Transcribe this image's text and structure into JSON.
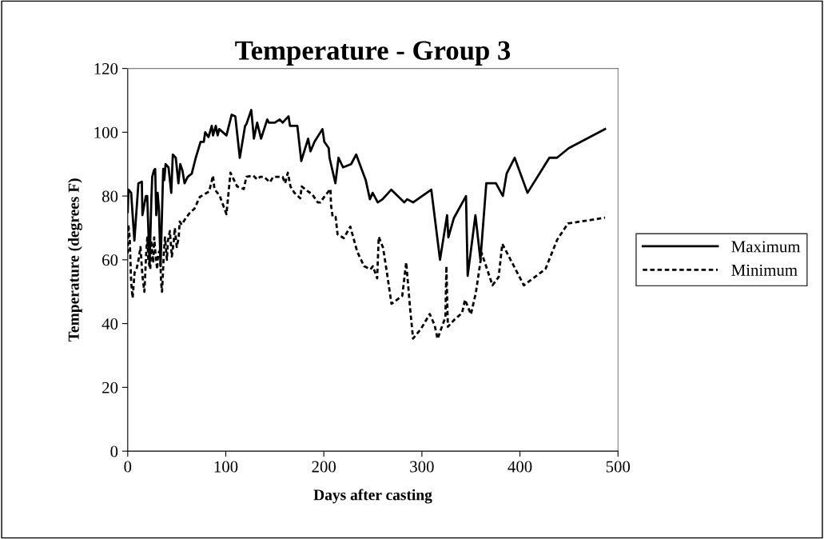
{
  "chart_data": {
    "type": "line",
    "title": "Temperature - Group 3",
    "xlabel": "Days after casting",
    "ylabel": "Temperature (degrees F)",
    "xlim": [
      0,
      500
    ],
    "xticks": [
      0,
      100,
      200,
      300,
      400,
      500
    ],
    "ylim": [
      0,
      120
    ],
    "yticks": [
      0,
      20,
      40,
      60,
      80,
      100,
      120
    ],
    "grid": false,
    "legend": "right",
    "marker": "none",
    "series": [
      {
        "name": "Maximum",
        "color": "#000000",
        "line_style": "solid",
        "x": [
          0,
          0.8,
          3.5,
          6.8,
          10.9,
          14.4,
          15,
          18.5,
          19.9,
          22.3,
          24,
          25,
          26.7,
          28,
          29.1,
          30.5,
          31.8,
          33.5,
          36.2,
          37.3,
          38.6,
          41.6,
          44.4,
          46,
          49,
          51.7,
          53.6,
          55.8,
          58,
          61.2,
          65.3,
          69.4,
          74.3,
          77.6,
          79,
          82.4,
          85.7,
          87,
          89.8,
          91.7,
          93.3,
          100.7,
          106,
          109.7,
          114.3,
          119.7,
          121,
          126,
          128.7,
          132,
          136,
          142.3,
          144,
          150,
          155,
          158,
          164,
          165.5,
          173,
          177,
          184,
          186.4,
          190.5,
          198.6,
          200.5,
          205,
          205.8,
          211.8,
          215,
          219.6,
          227.8,
          233,
          242.7,
          247,
          249.8,
          255,
          259.9,
          268.8,
          282,
          285,
          291,
          309.6,
          318.5,
          325.7,
          327,
          332.5,
          345,
          346.7,
          354.6,
          359.7,
          365.7,
          375.5,
          382.6,
          386.4,
          394.6,
          407.7,
          430,
          437.8,
          449.8,
          486.8
        ],
        "values": [
          75,
          82,
          81,
          66,
          84,
          84.5,
          74,
          80,
          80,
          58,
          78,
          86,
          88,
          88.5,
          74,
          81,
          76,
          58,
          88.5,
          85,
          90,
          89,
          81,
          93,
          92,
          84,
          90,
          88,
          84,
          86,
          87,
          92,
          97,
          97,
          100,
          98.5,
          102,
          99,
          102,
          99,
          101,
          99,
          105.5,
          105,
          92,
          102,
          102.5,
          107,
          98,
          103,
          98,
          104,
          103,
          103,
          104,
          103,
          105,
          102,
          102,
          91,
          98,
          94,
          97,
          101,
          97,
          95,
          92,
          84,
          92,
          89,
          90,
          93,
          85,
          79,
          81,
          78,
          79,
          82,
          78,
          79,
          78,
          82,
          60,
          74,
          67,
          73,
          80,
          55,
          74,
          60,
          84,
          84,
          80,
          87,
          92,
          81,
          92,
          92,
          95,
          101
        ]
      },
      {
        "name": "Minimum",
        "color": "#000000",
        "line_style": "dotted",
        "x": [
          0,
          0.7,
          2,
          3.5,
          5,
          7,
          9,
          11,
          13,
          15,
          17,
          19,
          20,
          21,
          23,
          24,
          26,
          27,
          28,
          30,
          31,
          33,
          34,
          35,
          37,
          38,
          40,
          41,
          43,
          45,
          47,
          48,
          50,
          52,
          53,
          55,
          59,
          64,
          68,
          73.5,
          83,
          87,
          88.4,
          93.9,
          100.7,
          104.8,
          111.6,
          118.4,
          121,
          128,
          132,
          135,
          139,
          145,
          148.3,
          158,
          160.5,
          163.3,
          166,
          170,
          176,
          177.4,
          184,
          188,
          193.8,
          196.5,
          201,
          206.8,
          207.3,
          209,
          212,
          214,
          220.4,
          227,
          234,
          241,
          247.6,
          250,
          254.4,
          256,
          260.4,
          264.2,
          269,
          280,
          284,
          288.3,
          291,
          299,
          308,
          313,
          316,
          321,
          324,
          325,
          326.5,
          333,
          341,
          344,
          350,
          355,
          361,
          372,
          378.3,
          382,
          404,
          426,
          438,
          449,
          462,
          486.8
        ],
        "values": [
          62,
          71,
          67,
          53,
          48,
          56,
          57,
          60,
          64,
          55,
          50,
          63,
          67,
          60,
          57,
          66,
          59,
          67,
          63,
          57,
          62,
          63,
          53,
          50,
          63,
          67,
          60,
          66,
          69,
          61,
          66,
          70,
          64,
          67,
          72,
          71,
          73,
          75,
          76,
          79.7,
          81.4,
          86.4,
          82.2,
          80,
          74.3,
          87.3,
          83,
          82.2,
          86,
          86.4,
          85.2,
          86,
          86,
          84.3,
          86,
          86,
          84,
          87.3,
          83,
          81,
          79.3,
          83,
          81.4,
          80.6,
          78,
          78,
          80,
          82.2,
          77.2,
          73.5,
          73.5,
          68,
          66.8,
          70.4,
          62.6,
          58,
          57,
          58,
          54.2,
          67.2,
          63.8,
          56.3,
          46.2,
          48.7,
          59.2,
          43.7,
          35.3,
          38.3,
          43,
          39.5,
          35.2,
          39.5,
          42,
          58,
          39,
          41.2,
          43.3,
          47.5,
          42.9,
          49.6,
          62.1,
          52,
          54.6,
          65,
          52,
          57.1,
          66.3,
          71.4,
          72,
          73.2
        ]
      }
    ]
  }
}
